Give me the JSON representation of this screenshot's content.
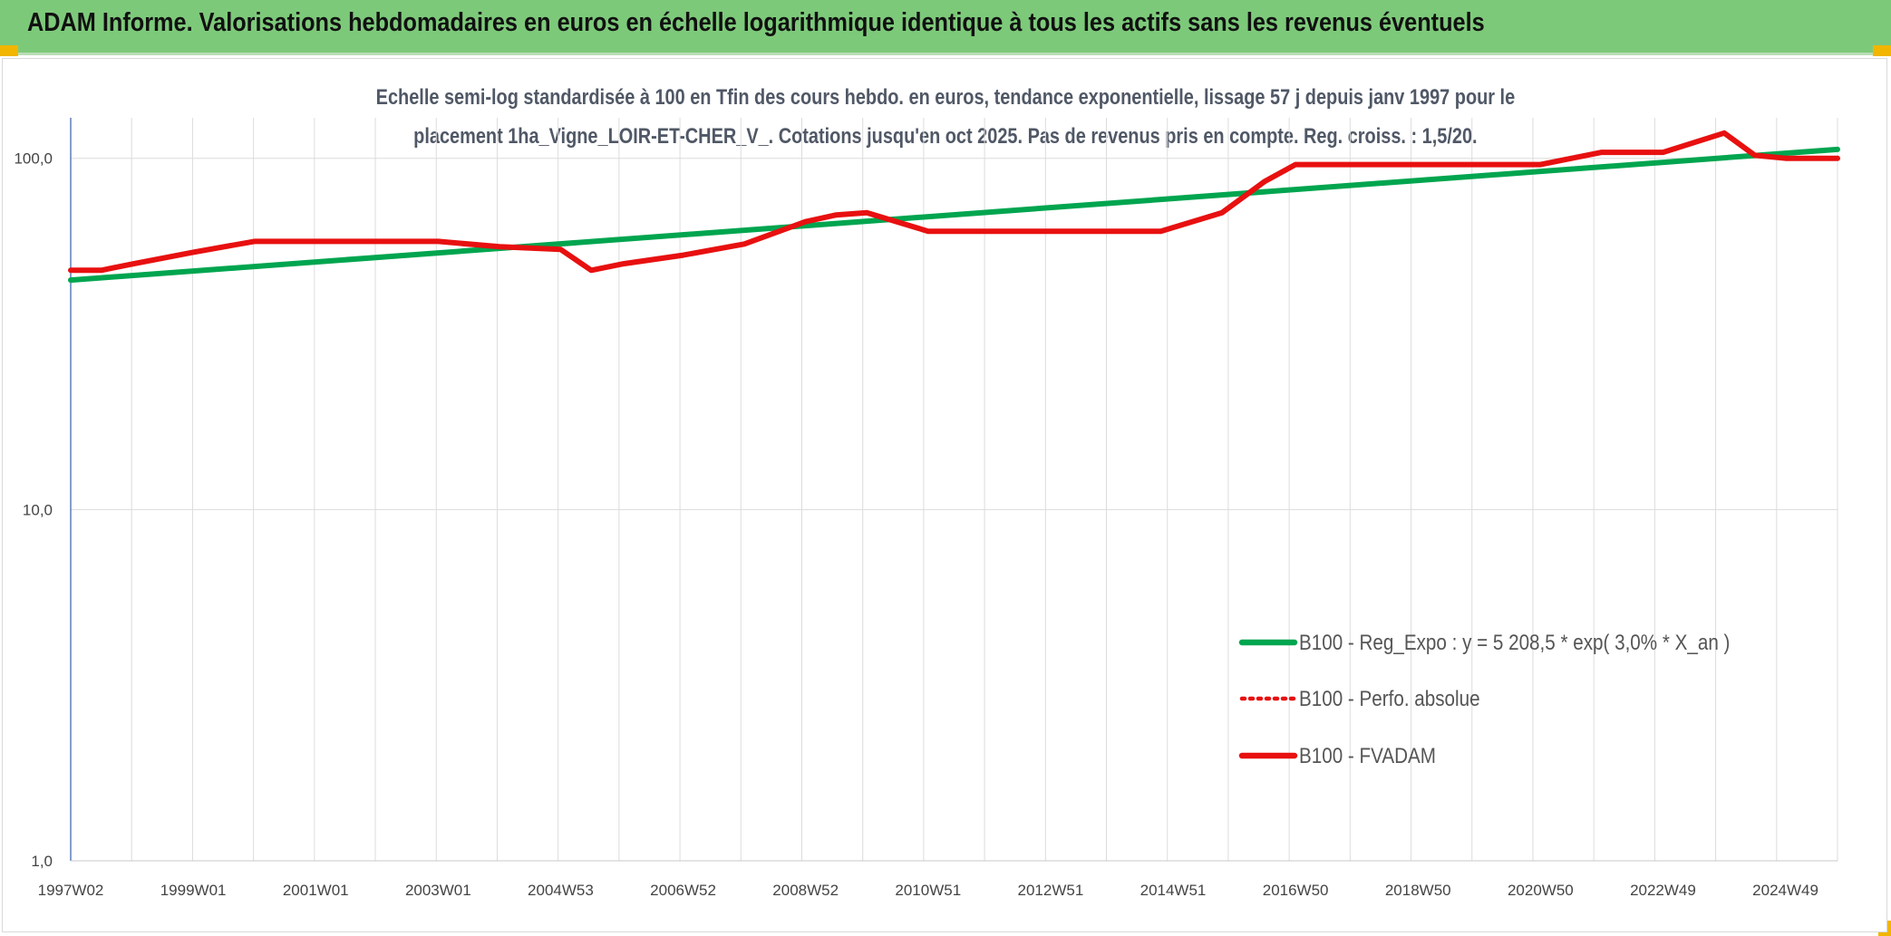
{
  "header": {
    "title": "ADAM Informe. Valorisations hebdomadaires en euros en échelle logarithmique identique à tous les actifs sans les revenus éventuels"
  },
  "colors": {
    "banner": "#7dc97a",
    "corner": "#f2b500",
    "regression": "#00a54f",
    "fvadam": "#e81010",
    "perfo": "#e81010",
    "grid": "#dcdcdc",
    "axis": "#5b7fb8"
  },
  "chart_data": {
    "type": "line",
    "subtitle_lines": [
      "Echelle semi-log standardisée à 100 en Tfin des cours hebdo. en euros, tendance exponentielle, lissage 57 j depuis janv 1997 pour le",
      "placement 1ha_Vigne_LOIR-ET-CHER_V_. Cotations jusqu'en oct 2025. Pas de revenus pris en compte. Reg. croiss. : 1,5/20."
    ],
    "y_scale": "log",
    "ylim": [
      1,
      200
    ],
    "y_ticks": [
      {
        "value": 1,
        "label": "1,0"
      },
      {
        "value": 10,
        "label": "10,0"
      },
      {
        "value": 100,
        "label": "100,0"
      }
    ],
    "xlim": [
      1997.0,
      2025.85
    ],
    "x_ticks": [
      {
        "value": 1997.0,
        "label": "1997W02"
      },
      {
        "value": 1999.0,
        "label": "1999W01"
      },
      {
        "value": 2001.0,
        "label": "2001W01"
      },
      {
        "value": 2003.0,
        "label": "2003W01"
      },
      {
        "value": 2005.0,
        "label": "2004W53"
      },
      {
        "value": 2007.0,
        "label": "2006W52"
      },
      {
        "value": 2009.0,
        "label": "2008W52"
      },
      {
        "value": 2011.0,
        "label": "2010W51"
      },
      {
        "value": 2013.0,
        "label": "2012W51"
      },
      {
        "value": 2015.0,
        "label": "2014W51"
      },
      {
        "value": 2017.0,
        "label": "2016W50"
      },
      {
        "value": 2019.0,
        "label": "2018W50"
      },
      {
        "value": 2021.0,
        "label": "2020W50"
      },
      {
        "value": 2023.0,
        "label": "2022W49"
      },
      {
        "value": 2025.0,
        "label": "2024W49"
      }
    ],
    "grid": true,
    "legend_position": "lower-right",
    "series": [
      {
        "name": "B100 - Reg_Expo : y = 5 208,5 * exp( 3,0% *  X_an )",
        "style": "solid",
        "x": [
          1997.0,
          2025.85
        ],
        "y": [
          45,
          106
        ]
      },
      {
        "name": "B100 - Perfo. absolue",
        "style": "dotted",
        "x": [],
        "y": []
      },
      {
        "name": "B100 - FVADAM",
        "style": "solid",
        "x": [
          1997.0,
          1997.5,
          1998.0,
          1999.0,
          2000.0,
          2001.0,
          2002.0,
          2003.0,
          2004.0,
          2005.0,
          2005.5,
          2006.0,
          2007.0,
          2008.0,
          2009.0,
          2009.5,
          2010.0,
          2011.0,
          2012.0,
          2013.0,
          2014.0,
          2014.8,
          2015.8,
          2016.5,
          2017.0,
          2018.0,
          2019.0,
          2020.0,
          2021.0,
          2022.0,
          2023.0,
          2024.0,
          2024.5,
          2025.0,
          2025.85
        ],
        "y": [
          48,
          48,
          50,
          54,
          58,
          58,
          58,
          58,
          56,
          55,
          48,
          50,
          53,
          57,
          66,
          69,
          70,
          62,
          62,
          62,
          62,
          62,
          70,
          86,
          96,
          96,
          96,
          96,
          96,
          104,
          104,
          118,
          102,
          100,
          100
        ]
      }
    ]
  }
}
